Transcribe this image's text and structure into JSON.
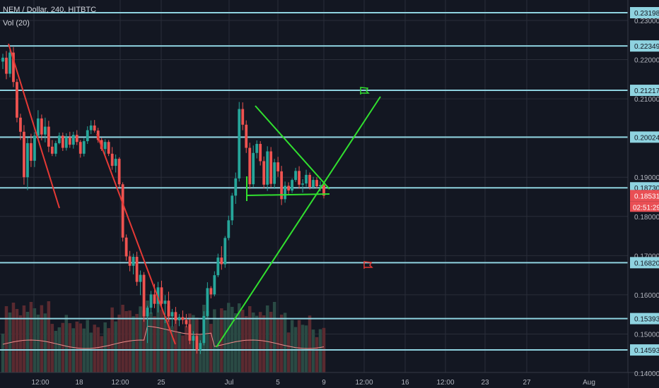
{
  "header": {
    "title": "NEM / Dollar, 240, HITBTC",
    "volume_label": "Vol (20)"
  },
  "colors": {
    "background": "#131722",
    "grid": "#2a2e39",
    "up": "#26a69a",
    "down": "#ef5350",
    "level": "#8fd3e0",
    "green_trend": "#31e02f",
    "red_trend": "#e53935",
    "price_tag": "#e94f54",
    "volume_up": "#2a4a44",
    "volume_down": "#5a2a30",
    "volume_ma": "#f08a8a"
  },
  "chart_data": {
    "type": "candlestick",
    "symbol": "NEM / Dollar",
    "interval": "240",
    "exchange": "HITBTC",
    "y_ticks": [
      "0.23000",
      "0.22000",
      "0.21000",
      "0.20000",
      "0.19000",
      "0.18000",
      "0.17000",
      "0.16000",
      "0.15000",
      "0.14000"
    ],
    "x_ticks": [
      "12:00",
      "18",
      "12:00",
      "25",
      "Jul",
      "5",
      "9",
      "12:00",
      "16",
      "12:00",
      "23",
      "27",
      "Aug"
    ],
    "horizontal_levels": [
      0.23198,
      0.22349,
      0.21217,
      0.20024,
      0.1873,
      0.1682,
      0.15393,
      0.14593
    ],
    "level_labels": [
      "0.23198",
      "0.22349",
      "0.21217",
      "0.20024",
      "0.18730",
      "0.16820",
      "0.15393",
      "0.14593"
    ],
    "last_price": "0.18531",
    "countdown": "02:51:29",
    "candles": [
      [
        0.2195,
        0.2215,
        0.2176,
        0.2205
      ],
      [
        0.2205,
        0.2222,
        0.215,
        0.2164
      ],
      [
        0.2164,
        0.2229,
        0.2155,
        0.2218
      ],
      [
        0.2218,
        0.2232,
        0.213,
        0.2143
      ],
      [
        0.2143,
        0.2151,
        0.204,
        0.2052
      ],
      [
        0.2052,
        0.2062,
        0.1995,
        0.2016
      ],
      [
        0.2016,
        0.2033,
        0.1881,
        0.19
      ],
      [
        0.19,
        0.2001,
        0.1867,
        0.1987
      ],
      [
        0.1987,
        0.2011,
        0.1926,
        0.1942
      ],
      [
        0.1942,
        0.2015,
        0.1926,
        0.2006
      ],
      [
        0.2006,
        0.2071,
        0.1993,
        0.205
      ],
      [
        0.205,
        0.206,
        0.1994,
        0.2009
      ],
      [
        0.2009,
        0.2052,
        0.1989,
        0.2029
      ],
      [
        0.2029,
        0.2044,
        0.1964,
        0.1978
      ],
      [
        0.1978,
        0.1995,
        0.1954,
        0.196
      ],
      [
        0.196,
        0.1993,
        0.1953,
        0.1987
      ],
      [
        0.1987,
        0.2014,
        0.1984,
        0.2006
      ],
      [
        0.2006,
        0.2014,
        0.1967,
        0.1975
      ],
      [
        0.1975,
        0.2012,
        0.1968,
        0.2002
      ],
      [
        0.2002,
        0.2016,
        0.1975,
        0.1983
      ],
      [
        0.1983,
        0.2016,
        0.1973,
        0.2008
      ],
      [
        0.2008,
        0.202,
        0.1982,
        0.199
      ],
      [
        0.199,
        0.1995,
        0.195,
        0.196
      ],
      [
        0.196,
        0.2,
        0.1953,
        0.1992
      ],
      [
        0.1992,
        0.203,
        0.1985,
        0.202
      ],
      [
        0.202,
        0.2045,
        0.201,
        0.2032
      ],
      [
        0.2032,
        0.2046,
        0.2014,
        0.2019
      ],
      [
        0.2019,
        0.2026,
        0.1988,
        0.1995
      ],
      [
        0.1995,
        0.2001,
        0.1967,
        0.1972
      ],
      [
        0.1972,
        0.1997,
        0.1957,
        0.199
      ],
      [
        0.199,
        0.1995,
        0.1954,
        0.196
      ],
      [
        0.196,
        0.1977,
        0.1919,
        0.1929
      ],
      [
        0.1929,
        0.1958,
        0.1912,
        0.1947
      ],
      [
        0.1947,
        0.1951,
        0.1874,
        0.1882
      ],
      [
        0.1882,
        0.1887,
        0.1736,
        0.1746
      ],
      [
        0.1746,
        0.1754,
        0.1687,
        0.1698
      ],
      [
        0.1698,
        0.1712,
        0.166,
        0.1674
      ],
      [
        0.1674,
        0.1705,
        0.1652,
        0.1697
      ],
      [
        0.1697,
        0.171,
        0.1623,
        0.1633
      ],
      [
        0.1633,
        0.1662,
        0.1599,
        0.1651
      ],
      [
        0.1651,
        0.1658,
        0.1531,
        0.1545
      ],
      [
        0.1545,
        0.1572,
        0.1477,
        0.1567
      ],
      [
        0.1567,
        0.161,
        0.1552,
        0.1601
      ],
      [
        0.1601,
        0.1628,
        0.1566,
        0.1577
      ],
      [
        0.1577,
        0.1633,
        0.1555,
        0.1619
      ],
      [
        0.1619,
        0.1636,
        0.1568,
        0.1577
      ],
      [
        0.1577,
        0.1599,
        0.1528,
        0.1585
      ],
      [
        0.1585,
        0.1608,
        0.1531,
        0.1545
      ],
      [
        0.1545,
        0.1564,
        0.1519,
        0.1556
      ],
      [
        0.1556,
        0.1569,
        0.1526,
        0.1535
      ],
      [
        0.1535,
        0.1551,
        0.152,
        0.1543
      ],
      [
        0.1543,
        0.156,
        0.1525,
        0.1536
      ],
      [
        0.1536,
        0.1551,
        0.1517,
        0.1525
      ],
      [
        0.1525,
        0.1538,
        0.1474,
        0.1483
      ],
      [
        0.1483,
        0.1507,
        0.1461,
        0.1495
      ],
      [
        0.1495,
        0.1502,
        0.145,
        0.1459
      ],
      [
        0.1459,
        0.1484,
        0.1449,
        0.1477
      ],
      [
        0.1477,
        0.1558,
        0.1471,
        0.1546
      ],
      [
        0.1546,
        0.1632,
        0.1542,
        0.1617
      ],
      [
        0.1617,
        0.1622,
        0.1591,
        0.1601
      ],
      [
        0.1601,
        0.166,
        0.1596,
        0.165
      ],
      [
        0.165,
        0.1705,
        0.1645,
        0.1695
      ],
      [
        0.1695,
        0.1724,
        0.1664,
        0.1678
      ],
      [
        0.1678,
        0.175,
        0.1669,
        0.1745
      ],
      [
        0.1745,
        0.1802,
        0.1739,
        0.179
      ],
      [
        0.179,
        0.186,
        0.1778,
        0.1853
      ],
      [
        0.1853,
        0.1912,
        0.1832,
        0.1897
      ],
      [
        0.1897,
        0.2092,
        0.1889,
        0.2074
      ],
      [
        0.2074,
        0.2091,
        0.202,
        0.2034
      ],
      [
        0.2034,
        0.2045,
        0.1962,
        0.1975
      ],
      [
        0.1975,
        0.1988,
        0.187,
        0.1882
      ],
      [
        0.1882,
        0.1981,
        0.1874,
        0.1962
      ],
      [
        0.1962,
        0.1994,
        0.1948,
        0.1985
      ],
      [
        0.1985,
        0.1992,
        0.193,
        0.1941
      ],
      [
        0.1941,
        0.1953,
        0.1871,
        0.1881
      ],
      [
        0.1881,
        0.1979,
        0.1865,
        0.1966
      ],
      [
        0.1966,
        0.1977,
        0.1874,
        0.1883
      ],
      [
        0.1883,
        0.1947,
        0.187,
        0.1938
      ],
      [
        0.1938,
        0.1952,
        0.1901,
        0.1915
      ],
      [
        0.1915,
        0.1929,
        0.1829,
        0.1844
      ],
      [
        0.1844,
        0.1889,
        0.1835,
        0.1878
      ],
      [
        0.1878,
        0.1887,
        0.1854,
        0.1866
      ],
      [
        0.1866,
        0.1897,
        0.186,
        0.1893
      ],
      [
        0.1893,
        0.1924,
        0.1888,
        0.1916
      ],
      [
        0.1916,
        0.1928,
        0.1871,
        0.1881
      ],
      [
        0.1881,
        0.1895,
        0.1861,
        0.1884
      ],
      [
        0.1884,
        0.1919,
        0.1876,
        0.1906
      ],
      [
        0.1906,
        0.1912,
        0.1869,
        0.1875
      ],
      [
        0.1875,
        0.1901,
        0.187,
        0.1893
      ],
      [
        0.1893,
        0.19,
        0.1871,
        0.1877
      ],
      [
        0.1877,
        0.189,
        0.1864,
        0.188
      ],
      [
        0.188,
        0.1884,
        0.1846,
        0.1853
      ]
    ]
  }
}
